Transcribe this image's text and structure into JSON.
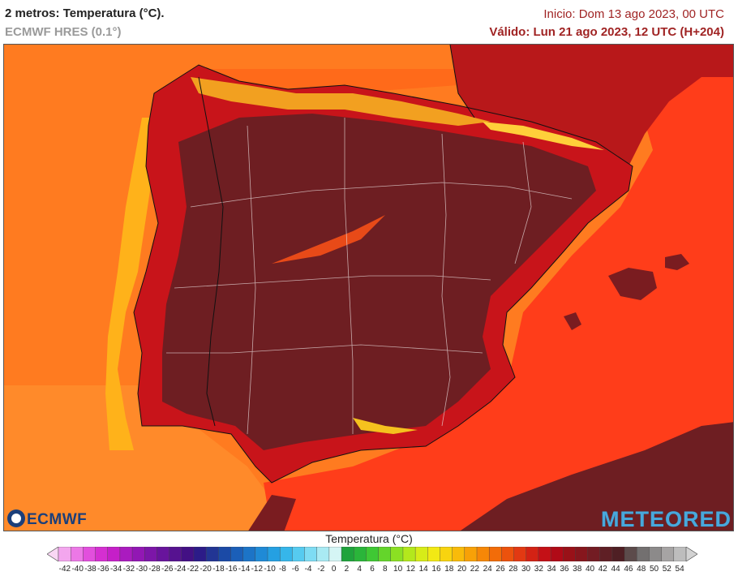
{
  "header": {
    "title": "2 metros: Temperatura (°C).",
    "model": "ECMWF HRES (0.1°)",
    "init": "Inicio: Dom 13 ago 2023, 00 UTC",
    "valid": "Válido: Lun 21 ago 2023, 12 UTC (H+204)"
  },
  "logos": {
    "left": "ECMWF",
    "right": "METEORED"
  },
  "legend": {
    "title": "Temperatura (°C)",
    "ticks": [
      "-42",
      "-40",
      "-38",
      "-36",
      "-34",
      "-32",
      "-30",
      "-28",
      "-26",
      "-24",
      "-22",
      "-20",
      "-18",
      "-16",
      "-14",
      "-12",
      "-10",
      "-8",
      "-6",
      "-4",
      "-2",
      "0",
      "2",
      "4",
      "6",
      "8",
      "10",
      "12",
      "14",
      "16",
      "18",
      "20",
      "22",
      "24",
      "26",
      "28",
      "30",
      "32",
      "34",
      "36",
      "38",
      "40",
      "42",
      "44",
      "46",
      "48",
      "50",
      "52",
      "54"
    ],
    "colors": [
      "#f9d7f4",
      "#f3a6ee",
      "#ec78e6",
      "#e24fdd",
      "#d52fd1",
      "#c51fc8",
      "#aa1bbf",
      "#9217b4",
      "#7c16a8",
      "#68149c",
      "#561290",
      "#431084",
      "#2c1b88",
      "#223594",
      "#1b4aa6",
      "#1b5fb8",
      "#1c74c7",
      "#1f8ad6",
      "#25a0e2",
      "#36b6ea",
      "#56cbf0",
      "#7edcf3",
      "#a9eaf3",
      "#d5f5f5",
      "#1fa33c",
      "#2ab53a",
      "#3fc834",
      "#64d52b",
      "#8be023",
      "#b3e81c",
      "#d7ec18",
      "#f2e914",
      "#f8d40f",
      "#f9bb0a",
      "#f8a107",
      "#f68707",
      "#f26c09",
      "#ec520d",
      "#e23912",
      "#d32214",
      "#c41016",
      "#b00a17",
      "#991118",
      "#86161d",
      "#731c23",
      "#5f1f25",
      "#4f1f24",
      "#5c4b4b",
      "#737070",
      "#8c8a8a",
      "#a6a4a4",
      "#bdbdbd",
      "#d2d2d2"
    ]
  }
}
